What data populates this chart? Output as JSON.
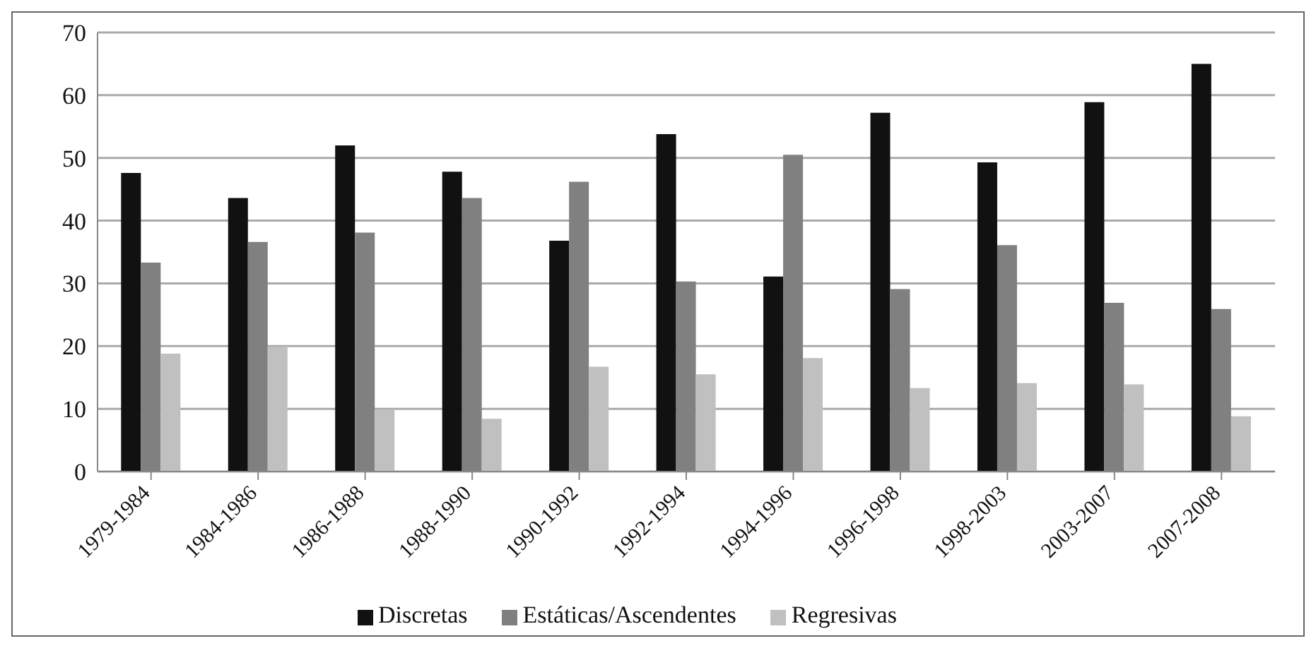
{
  "chart_data": {
    "type": "bar",
    "categories": [
      "1979-1984",
      "1984-1986",
      "1986-1988",
      "1988-1990",
      "1990-1992",
      "1992-1994",
      "1994-1996",
      "1996-1998",
      "1998-2003",
      "2003-2007",
      "2007-2008"
    ],
    "series": [
      {
        "name": "Discretas",
        "color": "#111111",
        "values": [
          47.6,
          43.6,
          52.0,
          47.8,
          36.8,
          53.8,
          31.1,
          57.2,
          49.3,
          58.9,
          65.0
        ]
      },
      {
        "name": "Estáticas/Ascendentes",
        "color": "#808080",
        "values": [
          33.3,
          36.6,
          38.1,
          43.6,
          46.2,
          30.3,
          50.5,
          29.1,
          36.1,
          26.9,
          25.9
        ]
      },
      {
        "name": "Regresivas",
        "color": "#c0c0c0",
        "values": [
          18.8,
          19.9,
          9.9,
          8.4,
          16.7,
          15.5,
          18.1,
          13.3,
          14.1,
          13.9,
          8.8
        ]
      }
    ],
    "ylim": [
      0,
      70
    ],
    "yticks": [
      0,
      10,
      20,
      30,
      40,
      50,
      60,
      70
    ],
    "grid": "y",
    "legend": "bottom"
  }
}
